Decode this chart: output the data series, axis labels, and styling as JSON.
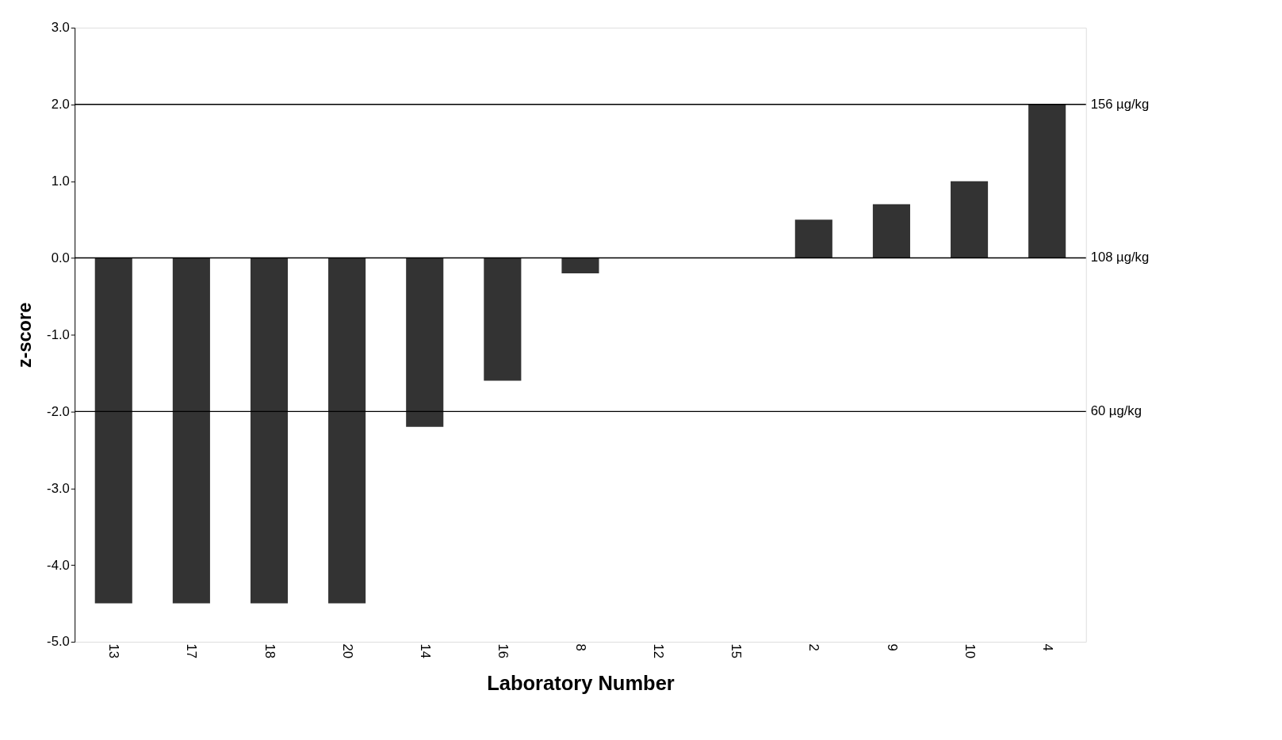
{
  "chart_data": {
    "type": "bar",
    "xlabel": "Laboratory Number",
    "ylabel": "z-score",
    "categories": [
      "13",
      "17",
      "18",
      "20",
      "14",
      "16",
      "8",
      "12",
      "15",
      "2",
      "9",
      "10",
      "4"
    ],
    "values": [
      -4.5,
      -4.5,
      -4.5,
      -4.5,
      -2.2,
      -1.6,
      -0.2,
      0,
      0,
      0.5,
      0.7,
      1.0,
      2.0
    ],
    "color": "#333333",
    "ylim": [
      -5.0,
      3.0
    ],
    "yticks": [
      {
        "value": -5,
        "label": "-5.0"
      },
      {
        "value": -4,
        "label": "-4.0"
      },
      {
        "value": -3,
        "label": "-3.0"
      },
      {
        "value": -2,
        "label": "-2.0"
      },
      {
        "value": -1,
        "label": "-1.0"
      },
      {
        "value": 0,
        "label": "0.0"
      },
      {
        "value": 1,
        "label": "1.0"
      },
      {
        "value": 2,
        "label": "2.0"
      },
      {
        "value": 3,
        "label": "3.0"
      }
    ],
    "grid": false,
    "ref_lines": [
      {
        "axis": "y",
        "value": 2.0,
        "label": "156 µg/kg",
        "color": "#000000"
      },
      {
        "axis": "y",
        "value": 0.0,
        "label": "108 µg/kg",
        "color": "#000000"
      },
      {
        "axis": "y",
        "value": -2.0,
        "label": "60 µg/kg",
        "color": "#000000"
      }
    ]
  }
}
